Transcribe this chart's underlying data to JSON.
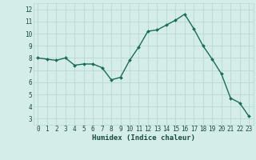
{
  "x": [
    0,
    1,
    2,
    3,
    4,
    5,
    6,
    7,
    8,
    9,
    10,
    11,
    12,
    13,
    14,
    15,
    16,
    17,
    18,
    19,
    20,
    21,
    22,
    23
  ],
  "y": [
    8.0,
    7.9,
    7.8,
    8.0,
    7.4,
    7.5,
    7.5,
    7.2,
    6.2,
    6.4,
    7.8,
    8.9,
    10.2,
    10.3,
    10.7,
    11.1,
    11.6,
    10.4,
    9.0,
    7.9,
    6.7,
    4.7,
    4.3,
    3.2
  ],
  "line_color": "#1a6b5a",
  "marker": "D",
  "markersize": 2.0,
  "linewidth": 1.0,
  "bg_color": "#d5ede8",
  "grid_color": "#b8d8d2",
  "xlabel": "Humidex (Indice chaleur)",
  "ylim": [
    2.5,
    12.5
  ],
  "xlim": [
    -0.5,
    23.5
  ],
  "yticks": [
    3,
    4,
    5,
    6,
    7,
    8,
    9,
    10,
    11,
    12
  ],
  "xticks": [
    0,
    1,
    2,
    3,
    4,
    5,
    6,
    7,
    8,
    9,
    10,
    11,
    12,
    13,
    14,
    15,
    16,
    17,
    18,
    19,
    20,
    21,
    22,
    23
  ],
  "xlabel_fontsize": 6.5,
  "tick_fontsize": 5.5,
  "tick_color": "#1a4a40",
  "xlabel_color": "#1a4a40"
}
